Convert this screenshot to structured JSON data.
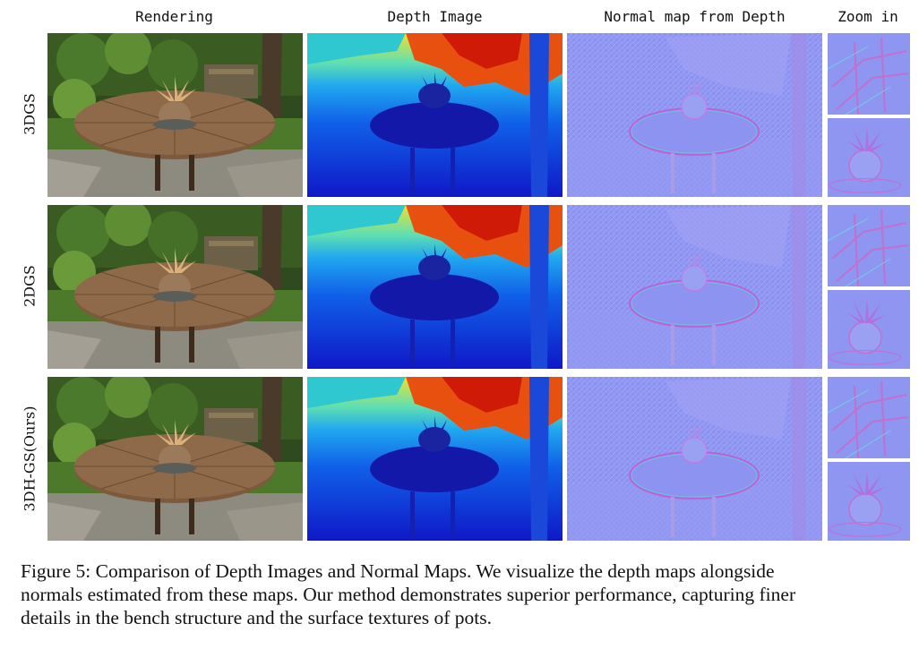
{
  "figure": {
    "columns": [
      "Rendering",
      "Depth Image",
      "Normal map from Depth",
      "Zoom in"
    ],
    "rows": [
      "3DGS",
      "2DGS",
      "3DH-GS(Ours)"
    ],
    "caption": {
      "lines": [
        "Figure 5: Comparison of Depth Images and Normal Maps. We visualize the depth maps alongside",
        "normals estimated from these maps. Our method demonstrates superior performance, capturing finer",
        "details in the bench structure and the surface textures of pots."
      ]
    }
  },
  "colors": {
    "depth_near": "#1018c8",
    "depth_far": "#d01a08",
    "normal_base": "#8f96f2",
    "grass": "#4d7a2a",
    "table_wood": "#7d5a3e"
  }
}
